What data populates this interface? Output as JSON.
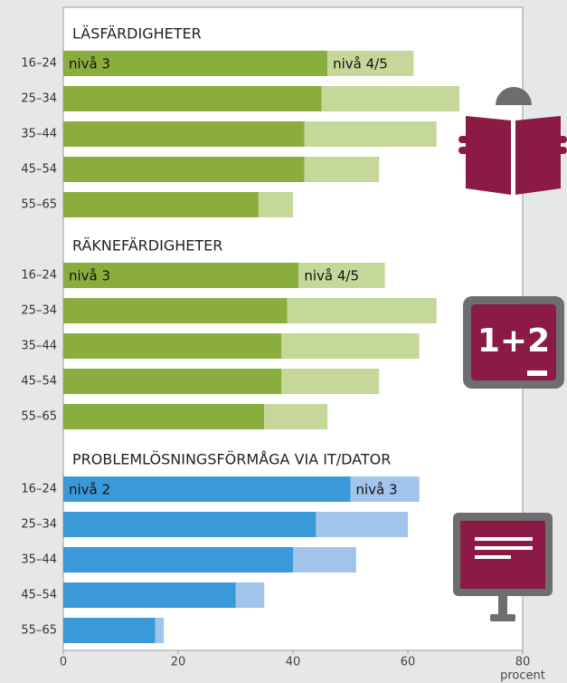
{
  "chart_data": [
    {
      "type": "bar",
      "orientation": "horizontal",
      "stacked": true,
      "title": "LÄSFÄRDIGHETER",
      "categories": [
        "16–24",
        "25–34",
        "35–44",
        "45–54",
        "55–65"
      ],
      "series": [
        {
          "name": "nivå 3",
          "color": "#8aae3e",
          "values": [
            46,
            45,
            42,
            42,
            34
          ]
        },
        {
          "name": "nivå 4/5",
          "color": "#c5d89a",
          "values": [
            15,
            24,
            23,
            13,
            6
          ]
        }
      ],
      "xlim": [
        0,
        80
      ]
    },
    {
      "type": "bar",
      "orientation": "horizontal",
      "stacked": true,
      "title": "RÄKNEFÄRDIGHETER",
      "categories": [
        "16–24",
        "25–34",
        "35–44",
        "45–54",
        "55–65"
      ],
      "series": [
        {
          "name": "nivå 3",
          "color": "#8aae3e",
          "values": [
            41,
            39,
            38,
            38,
            35
          ]
        },
        {
          "name": "nivå 4/5",
          "color": "#c5d89a",
          "values": [
            15,
            26,
            24,
            17,
            11
          ]
        }
      ],
      "xlim": [
        0,
        80
      ],
      "annotations": [
        "1+2"
      ]
    },
    {
      "type": "bar",
      "orientation": "horizontal",
      "stacked": true,
      "title": "PROBLEMLÖSNINGSFÖRMÅGA VIA IT/DATOR",
      "categories": [
        "16–24",
        "25–34",
        "35–44",
        "45–54",
        "55–65"
      ],
      "series": [
        {
          "name": "nivå 2",
          "color": "#3a9ad9",
          "values": [
            50,
            44,
            40,
            30,
            16
          ]
        },
        {
          "name": "nivå 3",
          "color": "#a0c4ea",
          "values": [
            12,
            16,
            11,
            5,
            1.5
          ]
        }
      ],
      "xlim": [
        0,
        80
      ],
      "xticks": [
        0,
        20,
        40,
        60,
        80
      ],
      "xlabel": "procent"
    }
  ]
}
